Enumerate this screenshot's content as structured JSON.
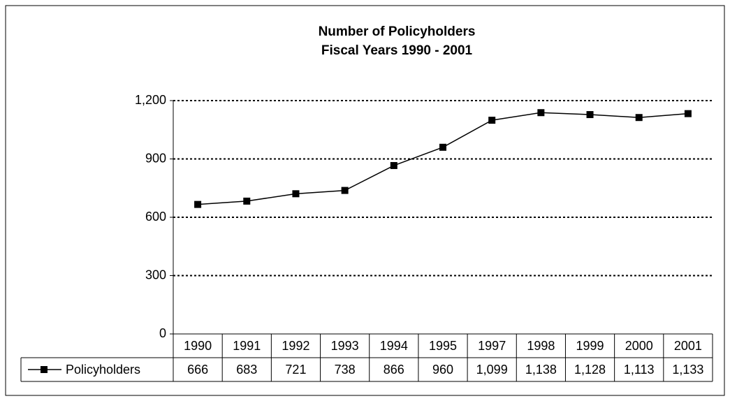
{
  "chart_data": {
    "type": "line",
    "title": "Number of Policyholders",
    "subtitle": "Fiscal Years 1990 - 2001",
    "categories": [
      "1990",
      "1991",
      "1992",
      "1993",
      "1994",
      "1995",
      "1997",
      "1998",
      "1999",
      "2000",
      "2001"
    ],
    "series": [
      {
        "name": "Policyholders",
        "color": "#000000",
        "values": [
          666,
          683,
          721,
          738,
          866,
          960,
          1099,
          1138,
          1128,
          1113,
          1133
        ],
        "value_labels": [
          "666",
          "683",
          "721",
          "738",
          "866",
          "960",
          "1,099",
          "1,138",
          "1,128",
          "1,113",
          "1,133"
        ]
      }
    ],
    "ylim": [
      0,
      1200
    ],
    "yticks": [
      0,
      300,
      600,
      900,
      {
        "value": 1200,
        "label": "1,200"
      }
    ],
    "grid": true
  }
}
